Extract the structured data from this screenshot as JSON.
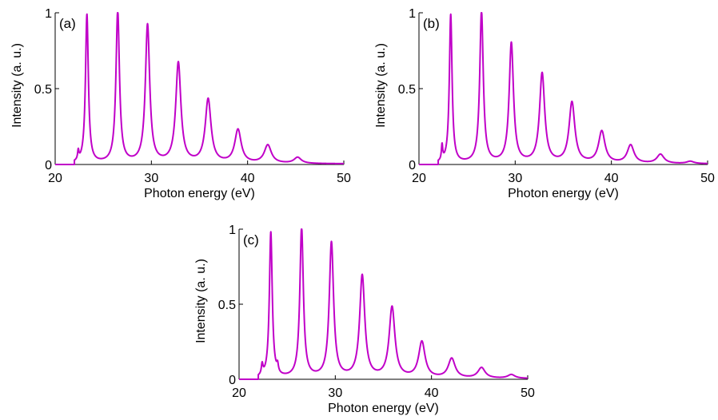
{
  "chart_data": [
    {
      "type": "line",
      "panel_label": "(a)",
      "xlabel": "Photon energy (eV)",
      "ylabel": "Intensity (a. u.)",
      "xlim": [
        20,
        50
      ],
      "ylim": [
        0,
        1
      ],
      "xticks": [
        20,
        30,
        40,
        50
      ],
      "yticks": [
        0,
        0.5,
        1
      ],
      "ytick_labels": [
        "0",
        "0.5",
        "1"
      ],
      "grid": false,
      "color": "#C000C8",
      "baseline": 0.004,
      "peaks": [
        {
          "x": 22.4,
          "y": 0.06,
          "w": 0.08
        },
        {
          "x": 23.3,
          "y": 0.98,
          "w": 0.18
        },
        {
          "x": 26.5,
          "y": 1.0,
          "w": 0.22
        },
        {
          "x": 29.6,
          "y": 0.91,
          "w": 0.27
        },
        {
          "x": 32.8,
          "y": 0.66,
          "w": 0.32
        },
        {
          "x": 35.9,
          "y": 0.42,
          "w": 0.36
        },
        {
          "x": 39.0,
          "y": 0.22,
          "w": 0.4
        },
        {
          "x": 42.1,
          "y": 0.12,
          "w": 0.44
        },
        {
          "x": 45.2,
          "y": 0.04,
          "w": 0.45
        }
      ]
    },
    {
      "type": "line",
      "panel_label": "(b)",
      "xlabel": "Photon energy (eV)",
      "ylabel": "Intensity (a. u.)",
      "xlim": [
        20,
        50
      ],
      "ylim": [
        0,
        1
      ],
      "xticks": [
        20,
        30,
        40,
        50
      ],
      "yticks": [
        0,
        0.5,
        1
      ],
      "ytick_labels": [
        "0",
        "0.5",
        "1"
      ],
      "grid": false,
      "color": "#C000C8",
      "baseline": 0.004,
      "peaks": [
        {
          "x": 22.4,
          "y": 0.1,
          "w": 0.08
        },
        {
          "x": 23.3,
          "y": 0.98,
          "w": 0.17
        },
        {
          "x": 26.5,
          "y": 1.0,
          "w": 0.22
        },
        {
          "x": 29.6,
          "y": 0.79,
          "w": 0.27
        },
        {
          "x": 32.8,
          "y": 0.59,
          "w": 0.32
        },
        {
          "x": 35.9,
          "y": 0.4,
          "w": 0.36
        },
        {
          "x": 39.0,
          "y": 0.21,
          "w": 0.4
        },
        {
          "x": 42.0,
          "y": 0.12,
          "w": 0.42
        },
        {
          "x": 45.1,
          "y": 0.06,
          "w": 0.45
        },
        {
          "x": 48.2,
          "y": 0.015,
          "w": 0.45
        }
      ]
    },
    {
      "type": "line",
      "panel_label": "(c)",
      "xlabel": "Photon energy (eV)",
      "ylabel": "Intensity (a. u.)",
      "xlim": [
        20,
        50
      ],
      "ylim": [
        0,
        1
      ],
      "xticks": [
        20,
        30,
        40,
        50
      ],
      "yticks": [
        0,
        0.5,
        1
      ],
      "ytick_labels": [
        "0",
        "0.5",
        "1"
      ],
      "grid": false,
      "color": "#C000C8",
      "baseline": 0.004,
      "peaks": [
        {
          "x": 22.4,
          "y": 0.07,
          "w": 0.1
        },
        {
          "x": 23.3,
          "y": 0.97,
          "w": 0.18
        },
        {
          "x": 24.0,
          "y": 0.05,
          "w": 0.1
        },
        {
          "x": 26.5,
          "y": 1.0,
          "w": 0.22
        },
        {
          "x": 29.6,
          "y": 0.9,
          "w": 0.27
        },
        {
          "x": 32.8,
          "y": 0.68,
          "w": 0.32
        },
        {
          "x": 35.9,
          "y": 0.47,
          "w": 0.36
        },
        {
          "x": 39.0,
          "y": 0.24,
          "w": 0.4
        },
        {
          "x": 42.1,
          "y": 0.13,
          "w": 0.43
        },
        {
          "x": 45.2,
          "y": 0.07,
          "w": 0.45
        },
        {
          "x": 48.3,
          "y": 0.025,
          "w": 0.45
        }
      ]
    }
  ]
}
